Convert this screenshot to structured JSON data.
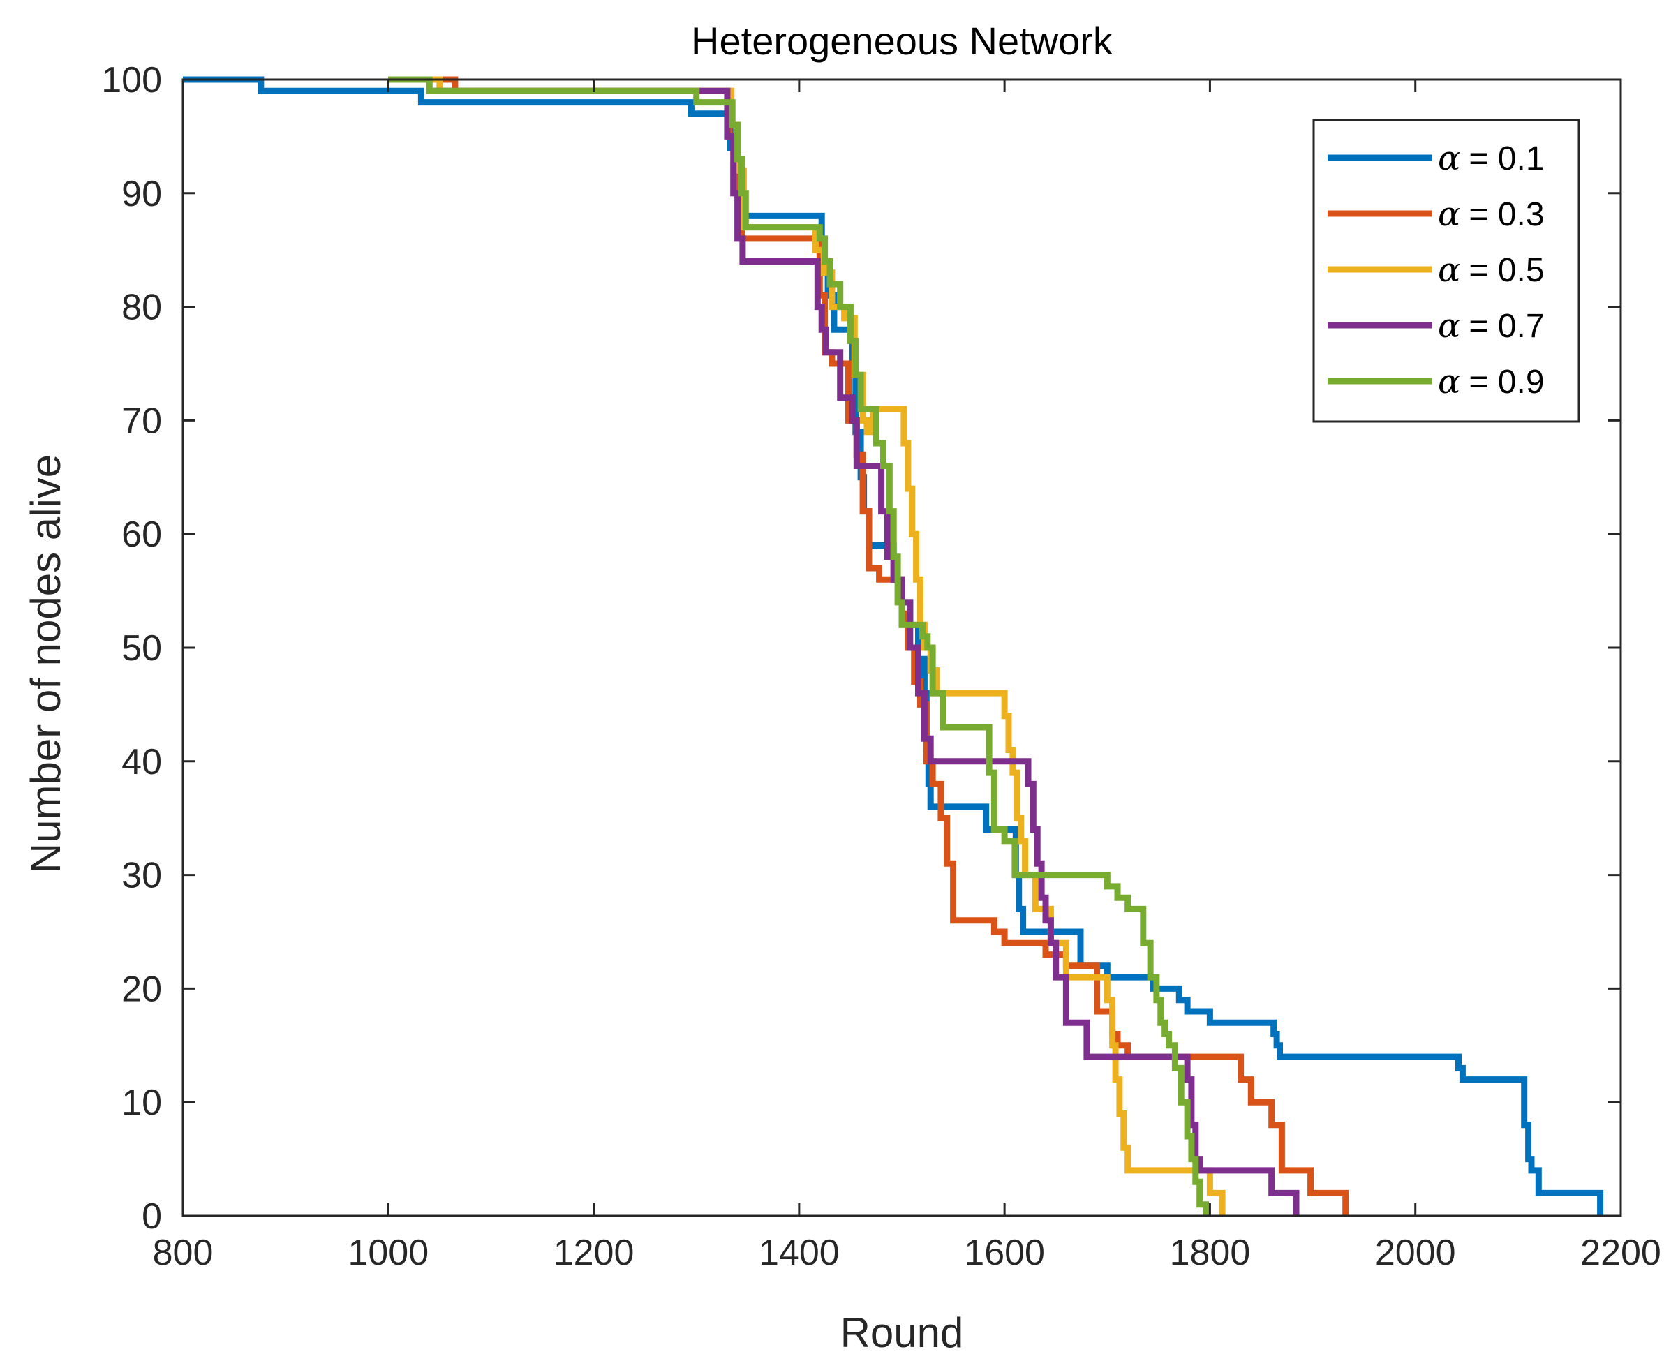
{
  "chart_data": {
    "type": "line",
    "style": "stairs",
    "title": "Heterogeneous Network",
    "xlabel": "Round",
    "ylabel": "Number of nodes alive",
    "xlim": [
      800,
      2200
    ],
    "ylim": [
      0,
      100
    ],
    "xticks": [
      800,
      1000,
      1200,
      1400,
      1600,
      1800,
      2000,
      2200
    ],
    "yticks": [
      0,
      10,
      20,
      30,
      40,
      50,
      60,
      70,
      80,
      90,
      100
    ],
    "legend_location": "top-right",
    "series": [
      {
        "name": "α = 0.1",
        "label_prefix": "α",
        "label_value": "= 0.1",
        "color": "#0072BD",
        "x": [
          800,
          876,
          1032,
          1295,
          1333,
          1338,
          1345,
          1422,
          1428,
          1434,
          1452,
          1455,
          1460,
          1463,
          1468,
          1492,
          1500,
          1508,
          1516,
          1522,
          1524,
          1526,
          1528,
          1542,
          1582,
          1590,
          1611,
          1614,
          1618,
          1650,
          1674,
          1680,
          1700,
          1714,
          1745,
          1770,
          1778,
          1800,
          1862,
          1865,
          1868,
          2042,
          2046,
          2100,
          2106,
          2110,
          2113,
          2120,
          2180
        ],
        "y": [
          100,
          99,
          98,
          97,
          94,
          91,
          88,
          84,
          81,
          78,
          74,
          69,
          65,
          62,
          59,
          56,
          54,
          52,
          49,
          46,
          41,
          38,
          36,
          36,
          34,
          34,
          30,
          27,
          25,
          25,
          22,
          22,
          21,
          21,
          20,
          19,
          18,
          17,
          16,
          15,
          14,
          13,
          12,
          12,
          8,
          5,
          4,
          2,
          0
        ]
      },
      {
        "name": "α = 0.3",
        "label_prefix": "α",
        "label_value": "= 0.3",
        "color": "#D95319",
        "x": [
          1000,
          1065,
          1332,
          1338,
          1344,
          1420,
          1425,
          1432,
          1448,
          1456,
          1462,
          1468,
          1478,
          1500,
          1506,
          1512,
          1518,
          1524,
          1530,
          1538,
          1544,
          1550,
          1590,
          1600,
          1625,
          1640,
          1660,
          1690,
          1700,
          1705,
          1710,
          1720,
          1812,
          1830,
          1840,
          1860,
          1870,
          1898,
          1932
        ],
        "y": [
          100,
          99,
          95,
          90,
          86,
          81,
          76,
          75,
          70,
          67,
          62,
          57,
          56,
          53,
          50,
          47,
          45,
          40,
          38,
          35,
          31,
          26,
          25,
          24,
          24,
          23,
          22,
          18,
          18,
          16,
          15,
          14,
          14,
          12,
          10,
          8,
          4,
          2,
          0
        ]
      },
      {
        "name": "α = 0.5",
        "label_prefix": "α",
        "label_value": "= 0.5",
        "color": "#EDB120",
        "x": [
          1000,
          1050,
          1334,
          1340,
          1346,
          1416,
          1424,
          1432,
          1444,
          1454,
          1462,
          1466,
          1472,
          1502,
          1506,
          1510,
          1514,
          1518,
          1522,
          1528,
          1534,
          1600,
          1604,
          1608,
          1612,
          1616,
          1620,
          1630,
          1645,
          1660,
          1700,
          1705,
          1708,
          1712,
          1716,
          1720,
          1800,
          1812
        ],
        "y": [
          100,
          99,
          96,
          92,
          87,
          85,
          83,
          80,
          79,
          74,
          70,
          69,
          71,
          68,
          64,
          60,
          56,
          52,
          50,
          48,
          46,
          44,
          41,
          39,
          35,
          33,
          30,
          27,
          24,
          21,
          19,
          15,
          12,
          9,
          6,
          4,
          2,
          0
        ]
      },
      {
        "name": "α = 0.7",
        "label_prefix": "α",
        "label_value": "= 0.7",
        "color": "#7E2F8E",
        "x": [
          1000,
          1040,
          1330,
          1336,
          1340,
          1345,
          1418,
          1422,
          1426,
          1432,
          1440,
          1452,
          1456,
          1460,
          1480,
          1486,
          1492,
          1500,
          1508,
          1516,
          1522,
          1528,
          1623,
          1628,
          1632,
          1636,
          1640,
          1645,
          1650,
          1660,
          1680,
          1686,
          1692,
          1778,
          1782,
          1786,
          1790,
          1860,
          1866,
          1884
        ],
        "y": [
          100,
          99,
          95,
          90,
          86,
          84,
          80,
          78,
          76,
          76,
          72,
          70,
          66,
          66,
          62,
          58,
          56,
          54,
          50,
          46,
          42,
          40,
          38,
          34,
          31,
          28,
          26,
          24,
          21,
          17,
          14,
          14,
          14,
          12,
          8,
          5,
          4,
          2,
          2,
          0
        ]
      },
      {
        "name": "α = 0.9",
        "label_prefix": "α",
        "label_value": "= 0.9",
        "color": "#77AC30",
        "x": [
          1000,
          1040,
          1300,
          1335,
          1340,
          1344,
          1348,
          1352,
          1356,
          1420,
          1425,
          1430,
          1435,
          1440,
          1450,
          1455,
          1460,
          1475,
          1482,
          1488,
          1492,
          1496,
          1500,
          1510,
          1520,
          1525,
          1530,
          1540,
          1580,
          1585,
          1590,
          1600,
          1610,
          1620,
          1680,
          1700,
          1710,
          1720,
          1735,
          1742,
          1748,
          1752,
          1756,
          1760,
          1766,
          1772,
          1778,
          1782,
          1786,
          1790,
          1796
        ],
        "y": [
          100,
          99,
          98,
          96,
          93,
          90,
          87,
          87,
          87,
          86,
          84,
          82,
          82,
          80,
          77,
          74,
          71,
          68,
          66,
          62,
          58,
          54,
          52,
          52,
          51,
          50,
          46,
          43,
          43,
          39,
          34,
          33,
          30,
          30,
          30,
          29,
          28,
          27,
          24,
          21,
          19,
          17,
          16,
          15,
          13,
          10,
          7,
          5,
          3,
          1,
          0
        ]
      }
    ]
  }
}
